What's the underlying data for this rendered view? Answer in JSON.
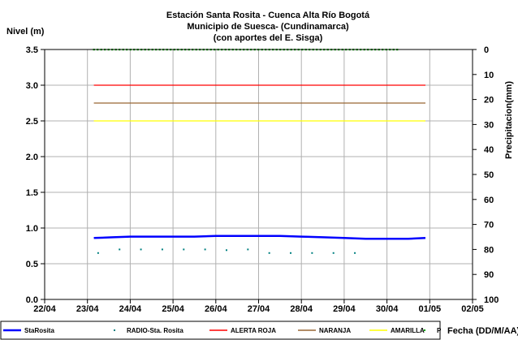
{
  "chart_data": {
    "type": "line",
    "title": [
      "Estación Santa Rosita - Cuenca Alta Río Bogotá",
      "Municipio de Suesca- (Cundinamarca)",
      "(con aportes del  E. Sisga)"
    ],
    "ylabel": "Nivel (m)",
    "y2label": "Precipitacion(mm)",
    "xlabel": "Fecha (DD/M/AA)",
    "ylim": [
      0,
      3.5
    ],
    "y2lim": [
      0,
      100
    ],
    "y2_inverted": true,
    "x_tick_labels": [
      "22/04",
      "23/04",
      "24/04",
      "25/04",
      "26/04",
      "27/04",
      "28/04",
      "29/04",
      "30/04",
      "01/05",
      "02/05"
    ],
    "y_tick_labels": [
      "0.0",
      "0.5",
      "1.0",
      "1.5",
      "2.0",
      "2.5",
      "3.0",
      "3.5"
    ],
    "y2_tick_labels": [
      "0",
      "10",
      "20",
      "30",
      "40",
      "50",
      "60",
      "70",
      "80",
      "90",
      "100"
    ],
    "grid": true,
    "legend_position": "bottom",
    "series": [
      {
        "name": "StaRosita",
        "color": "#0000ff",
        "style": "line",
        "x": [
          1.15,
          1.6,
          2.0,
          2.5,
          3.0,
          3.5,
          4.0,
          4.5,
          5.0,
          5.5,
          6.0,
          6.5,
          7.0,
          7.5,
          8.0,
          8.5,
          8.9
        ],
        "y": [
          0.86,
          0.87,
          0.88,
          0.88,
          0.88,
          0.88,
          0.89,
          0.89,
          0.89,
          0.89,
          0.88,
          0.87,
          0.86,
          0.85,
          0.85,
          0.85,
          0.86
        ]
      },
      {
        "name": "RADIO-Sta. Rosita",
        "color": "#008080",
        "style": "dots",
        "x": [
          1.25,
          1.75,
          2.25,
          2.75,
          3.25,
          3.75,
          4.25,
          4.75,
          5.25,
          5.75,
          6.25,
          6.75,
          7.25
        ],
        "y": [
          0.65,
          0.7,
          0.7,
          0.7,
          0.7,
          0.7,
          0.69,
          0.7,
          0.65,
          0.65,
          0.65,
          0.65,
          0.65
        ]
      },
      {
        "name": "ALERTA ROJA",
        "color": "#ff0000",
        "style": "line",
        "x": [
          1.15,
          8.9
        ],
        "y": [
          3.0,
          3.0
        ]
      },
      {
        "name": "NARANJA",
        "color": "#996633",
        "style": "line",
        "x": [
          1.15,
          8.9
        ],
        "y": [
          2.75,
          2.75
        ]
      },
      {
        "name": "AMARILLA",
        "color": "#ffff00",
        "style": "line",
        "x": [
          1.15,
          8.9
        ],
        "y": [
          2.5,
          2.5
        ]
      },
      {
        "name": "P",
        "color": "#00aa00",
        "style": "dots",
        "axis": "y2",
        "x_range": [
          1.15,
          8.3
        ],
        "precip_mm": 0
      }
    ]
  }
}
